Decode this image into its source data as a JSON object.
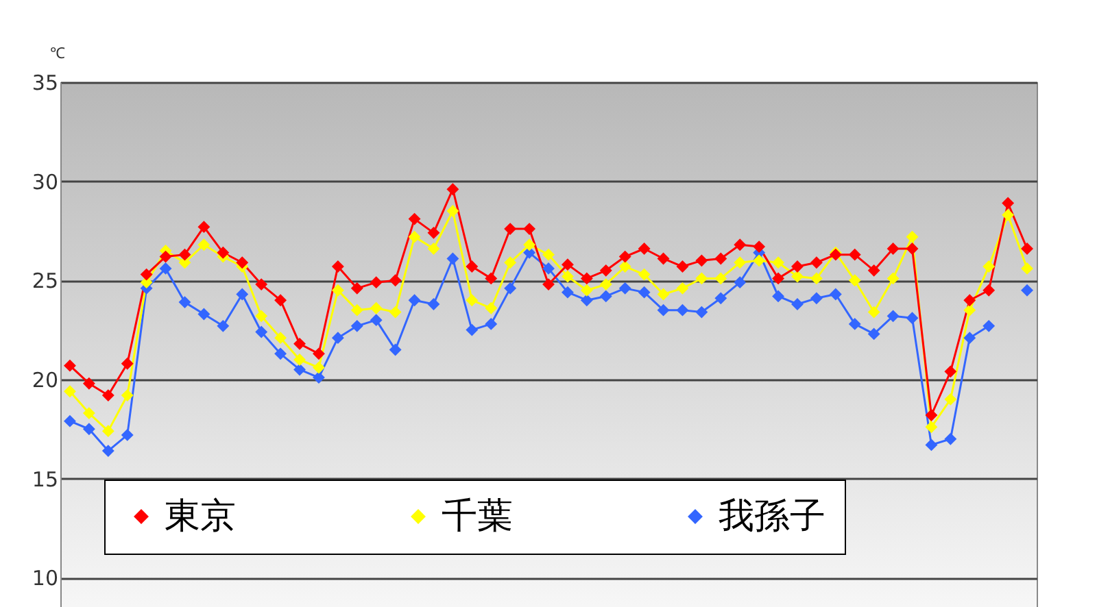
{
  "chart_data": {
    "type": "line",
    "ylabel": "℃",
    "categories": [
      null,
      null,
      null,
      null,
      null,
      null,
      null,
      null,
      null,
      null,
      null,
      null,
      null,
      null,
      null,
      null,
      null,
      null,
      null,
      null,
      null,
      null,
      null,
      null,
      null,
      null,
      null,
      null,
      null,
      null,
      null,
      null,
      null,
      null,
      null,
      null,
      null,
      null,
      null,
      null,
      null,
      null,
      null,
      null,
      null,
      null,
      null,
      null,
      null,
      null,
      null
    ],
    "series": [
      {
        "name": "東京",
        "color": "#ff0000",
        "values": [
          20.7,
          19.8,
          19.2,
          20.8,
          25.3,
          26.2,
          26.3,
          27.7,
          26.4,
          25.9,
          24.8,
          24.0,
          21.8,
          21.3,
          25.7,
          24.6,
          24.9,
          25.0,
          28.1,
          27.4,
          29.6,
          25.7,
          25.1,
          27.6,
          27.6,
          24.8,
          25.8,
          25.1,
          25.5,
          26.2,
          26.6,
          26.1,
          25.7,
          26.0,
          26.1,
          26.8,
          26.7,
          25.1,
          25.7,
          25.9,
          26.3,
          26.3,
          25.5,
          26.6,
          26.6,
          18.2,
          20.4,
          24.0,
          24.5,
          28.9,
          26.6
        ]
      },
      {
        "name": "千葉",
        "color": "#ffff00",
        "values": [
          19.4,
          18.3,
          17.4,
          19.2,
          24.9,
          26.5,
          25.9,
          26.8,
          26.2,
          25.7,
          23.2,
          22.1,
          21.0,
          20.6,
          24.5,
          23.5,
          23.6,
          23.4,
          27.2,
          26.6,
          28.5,
          24.0,
          23.6,
          25.9,
          26.8,
          26.3,
          25.2,
          24.5,
          24.8,
          25.7,
          25.3,
          24.3,
          24.6,
          25.1,
          25.1,
          25.9,
          26.0,
          25.9,
          25.2,
          25.1,
          26.4,
          25.0,
          23.4,
          25.1,
          27.2,
          17.6,
          19.0,
          23.5,
          25.7,
          28.3,
          25.6
        ]
      },
      {
        "name": "我孫子",
        "color": "#3366ff",
        "values": [
          17.9,
          17.5,
          16.4,
          17.2,
          24.6,
          25.6,
          23.9,
          23.3,
          22.7,
          24.3,
          22.4,
          21.3,
          20.5,
          20.1,
          22.1,
          22.7,
          23.0,
          21.5,
          24.0,
          23.8,
          26.1,
          22.5,
          22.8,
          24.6,
          26.4,
          25.6,
          24.4,
          24.0,
          24.2,
          24.6,
          24.4,
          23.5,
          23.5,
          23.4,
          24.1,
          24.9,
          26.4,
          24.2,
          23.8,
          24.1,
          24.3,
          22.8,
          22.3,
          23.2,
          23.1,
          16.7,
          17.0,
          22.1,
          22.7,
          null,
          24.5
        ]
      }
    ],
    "ylim": [
      7,
      35
    ],
    "yticks": [
      10,
      15,
      20,
      25,
      30,
      35
    ],
    "grid": "y",
    "legend": "bottom",
    "marker": "diamond",
    "line_style": "solid",
    "tick_labels": "y"
  }
}
